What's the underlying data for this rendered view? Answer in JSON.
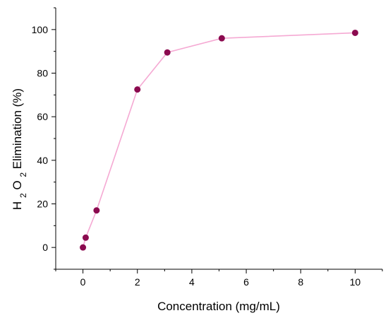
{
  "chart_data": {
    "type": "line",
    "title": "",
    "xlabel": "Concentration (mg/mL)",
    "ylabel": {
      "prefix": "H",
      "sub1": "2",
      "mid": "O",
      "sub2": "2",
      "suffix": " Elimination (%)"
    },
    "xlim": [
      -1,
      11
    ],
    "ylim": [
      -10,
      110
    ],
    "xticks": [
      0,
      2,
      4,
      6,
      8,
      10
    ],
    "yticks": [
      0,
      20,
      40,
      60,
      80,
      100
    ],
    "grid": false,
    "legend": "none",
    "series": [
      {
        "x": [
          0,
          0.1,
          0.5,
          2,
          3.1,
          5.1,
          10
        ],
        "y": [
          0,
          4.5,
          17,
          72.5,
          89.5,
          96,
          98.5
        ],
        "line_color": "#f5a9d3",
        "marker_color": "#8b0a4f"
      }
    ]
  }
}
